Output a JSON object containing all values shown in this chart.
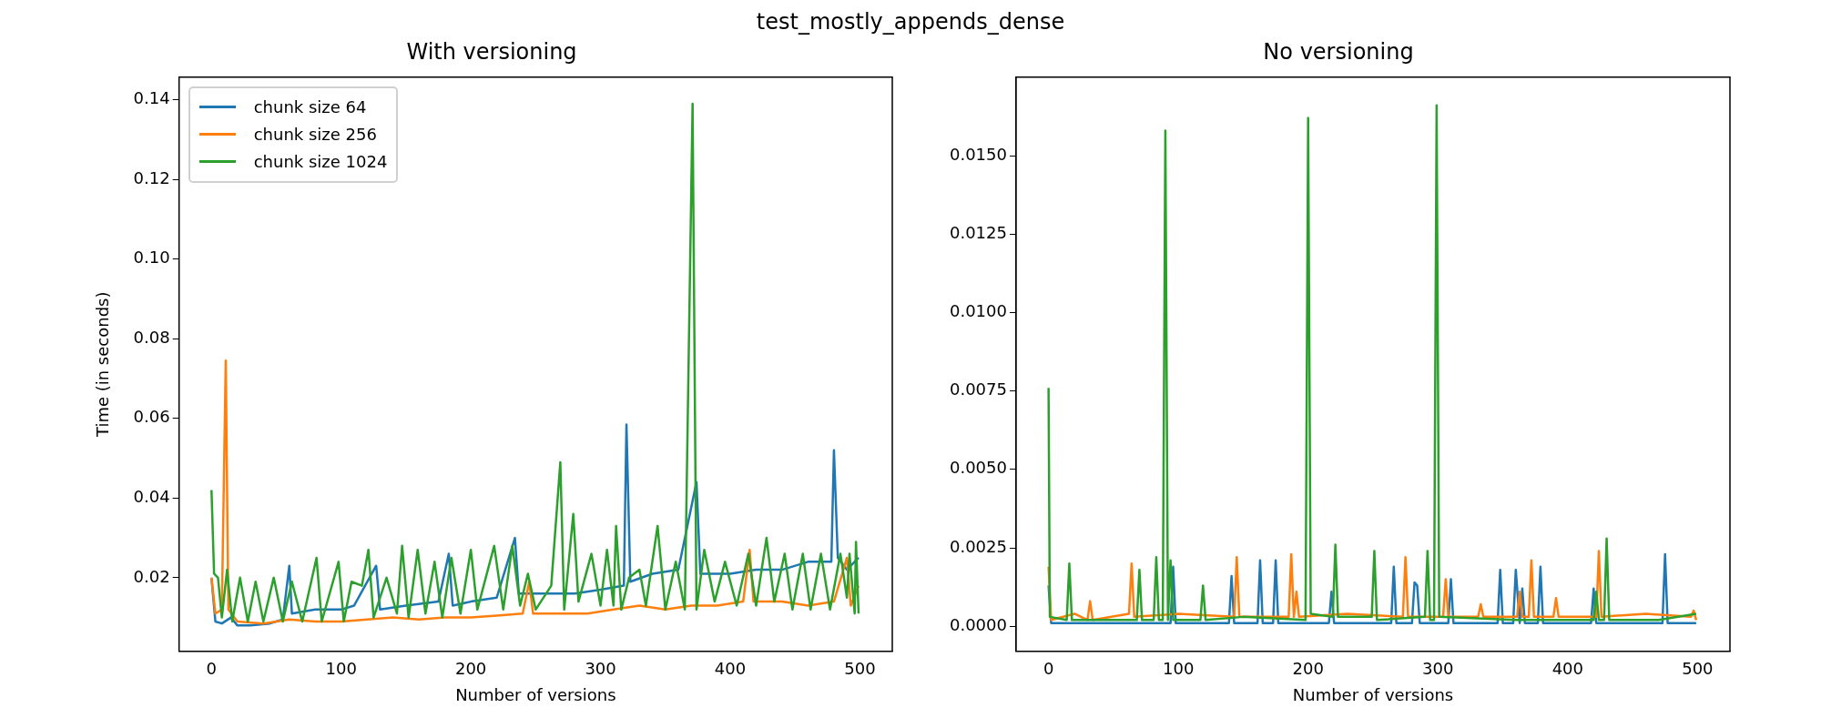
{
  "chart_data": [
    {
      "type": "line",
      "title": "test_mostly_appends_dense",
      "subtitle": "With versioning",
      "xlabel": "Number of versions",
      "ylabel": "Time (in seconds)",
      "xlim": [
        -25,
        525
      ],
      "ylim": [
        0.0015,
        0.1457
      ],
      "xticks": [
        0,
        100,
        200,
        300,
        400,
        500
      ],
      "yticks": [
        0.02,
        0.04,
        0.06,
        0.08,
        {
          "value": 0.1,
          "label": "0.10"
        },
        0.12,
        0.14
      ],
      "legend": "top left",
      "marker": "none",
      "line_style": "solid",
      "series": [
        {
          "name": "chunk size 64",
          "color": "#1f77b4",
          "x": [
            0,
            3,
            8,
            15,
            20,
            30,
            45,
            55,
            60,
            62,
            80,
            100,
            110,
            127,
            130,
            150,
            175,
            183,
            186,
            200,
            220,
            234,
            237,
            260,
            280,
            300,
            318,
            320,
            323,
            340,
            360,
            374,
            377,
            400,
            420,
            440,
            460,
            478,
            480,
            483,
            490,
            499
          ],
          "values": [
            0.02,
            0.009,
            0.0085,
            0.01,
            0.008,
            0.008,
            0.0085,
            0.0095,
            0.023,
            0.011,
            0.012,
            0.012,
            0.013,
            0.023,
            0.012,
            0.013,
            0.014,
            0.026,
            0.013,
            0.014,
            0.015,
            0.03,
            0.016,
            0.016,
            0.016,
            0.017,
            0.018,
            0.0585,
            0.019,
            0.021,
            0.022,
            0.044,
            0.021,
            0.021,
            0.022,
            0.022,
            0.024,
            0.024,
            0.052,
            0.025,
            0.022,
            0.025
          ]
        },
        {
          "name": "chunk size 256",
          "color": "#ff7f0e",
          "x": [
            0,
            3,
            8,
            11,
            13,
            20,
            40,
            60,
            80,
            100,
            120,
            140,
            160,
            180,
            200,
            220,
            240,
            245,
            248,
            270,
            290,
            310,
            330,
            350,
            370,
            390,
            410,
            415,
            418,
            440,
            460,
            480,
            490,
            493,
            499
          ],
          "values": [
            0.02,
            0.011,
            0.012,
            0.0745,
            0.012,
            0.009,
            0.0085,
            0.0095,
            0.009,
            0.009,
            0.0095,
            0.01,
            0.0095,
            0.01,
            0.01,
            0.0105,
            0.011,
            0.019,
            0.011,
            0.011,
            0.011,
            0.012,
            0.013,
            0.012,
            0.013,
            0.013,
            0.014,
            0.027,
            0.014,
            0.014,
            0.013,
            0.014,
            0.025,
            0.013,
            0.018
          ]
        },
        {
          "name": "chunk size 1024",
          "color": "#2ca02c",
          "x": [
            0,
            2,
            5,
            8,
            12,
            16,
            22,
            28,
            34,
            40,
            48,
            55,
            62,
            70,
            81,
            85,
            98,
            102,
            108,
            116,
            121,
            125,
            135,
            143,
            147,
            152,
            159,
            165,
            172,
            178,
            185,
            192,
            200,
            205,
            218,
            225,
            232,
            238,
            244,
            250,
            262,
            269,
            272,
            279,
            283,
            293,
            300,
            305,
            310,
            312,
            316,
            322,
            330,
            335,
            344,
            350,
            358,
            365,
            371,
            374,
            380,
            388,
            396,
            405,
            414,
            420,
            428,
            434,
            442,
            448,
            456,
            462,
            470,
            477,
            485,
            490,
            492,
            496,
            497,
            499
          ],
          "values": [
            0.042,
            0.021,
            0.02,
            0.01,
            0.022,
            0.009,
            0.02,
            0.009,
            0.019,
            0.009,
            0.02,
            0.009,
            0.019,
            0.009,
            0.025,
            0.009,
            0.024,
            0.009,
            0.019,
            0.018,
            0.027,
            0.01,
            0.02,
            0.011,
            0.028,
            0.01,
            0.027,
            0.011,
            0.024,
            0.01,
            0.025,
            0.011,
            0.027,
            0.012,
            0.028,
            0.012,
            0.028,
            0.013,
            0.021,
            0.012,
            0.018,
            0.049,
            0.012,
            0.036,
            0.014,
            0.026,
            0.013,
            0.027,
            0.013,
            0.033,
            0.012,
            0.02,
            0.022,
            0.013,
            0.033,
            0.012,
            0.024,
            0.012,
            0.139,
            0.012,
            0.027,
            0.014,
            0.024,
            0.013,
            0.026,
            0.013,
            0.03,
            0.014,
            0.026,
            0.012,
            0.026,
            0.012,
            0.026,
            0.012,
            0.026,
            0.015,
            0.026,
            0.011,
            0.029,
            0.011
          ]
        }
      ]
    },
    {
      "type": "line",
      "title": "No versioning",
      "xlabel": "Number of versions",
      "xlim": [
        -25,
        525
      ],
      "ylim": [
        -0.0008,
        0.0175
      ],
      "xticks": [
        0,
        100,
        200,
        300,
        400,
        500
      ],
      "yticks": [
        {
          "value": 0,
          "label": "0.0000"
        },
        {
          "value": 0.0025,
          "label": "0.0025"
        },
        {
          "value": 0.005,
          "label": "0.0050"
        },
        {
          "value": 0.0075,
          "label": "0.0075"
        },
        {
          "value": 0.01,
          "label": "0.0100"
        },
        {
          "value": 0.0125,
          "label": "0.0125"
        },
        {
          "value": 0.015,
          "label": "0.0150"
        }
      ],
      "marker": "none",
      "line_style": "solid",
      "series": [
        {
          "color": "#1f77b4",
          "x": [
            0,
            2,
            40,
            94,
            96,
            98,
            139,
            141,
            143,
            161,
            163,
            165,
            173,
            175,
            177,
            216,
            218,
            220,
            264,
            266,
            268,
            280,
            282,
            284,
            286,
            308,
            310,
            312,
            346,
            348,
            350,
            358,
            360,
            363,
            365,
            367,
            377,
            379,
            381,
            418,
            420,
            422,
            473,
            475,
            477,
            499
          ],
          "values": [
            0.0013,
            0.0001,
            0.0001,
            0.0001,
            0.0019,
            0.0001,
            0.0001,
            0.0016,
            0.0001,
            0.0001,
            0.0021,
            0.0001,
            0.0001,
            0.0021,
            0.0001,
            0.0001,
            0.0011,
            0.0001,
            0.0001,
            0.0019,
            0.0001,
            0.0001,
            0.0014,
            0.0013,
            0.0001,
            0.0001,
            0.0015,
            0.0001,
            0.0001,
            0.0018,
            0.0001,
            0.0001,
            0.0018,
            0.0001,
            0.0012,
            0.0001,
            0.0001,
            0.0019,
            0.0001,
            0.0001,
            0.0012,
            0.0001,
            0.0001,
            0.0023,
            0.0001,
            0.0001
          ]
        },
        {
          "color": "#ff7f0e",
          "x": [
            0,
            2,
            20,
            30,
            32,
            34,
            62,
            64,
            66,
            100,
            143,
            145,
            147,
            185,
            187,
            189,
            191,
            193,
            230,
            273,
            275,
            277,
            304,
            306,
            308,
            331,
            333,
            335,
            361,
            363,
            365,
            370,
            372,
            374,
            389,
            391,
            393,
            422,
            424,
            426,
            460,
            495,
            497,
            499
          ],
          "values": [
            0.0019,
            0.0002,
            0.0004,
            0.0002,
            0.0008,
            0.0002,
            0.0004,
            0.002,
            0.0003,
            0.0004,
            0.0003,
            0.0022,
            0.0003,
            0.0003,
            0.0023,
            0.0003,
            0.0011,
            0.0003,
            0.0004,
            0.0003,
            0.0022,
            0.0003,
            0.0003,
            0.0015,
            0.0003,
            0.0003,
            0.0007,
            0.0003,
            0.0003,
            0.0011,
            0.0003,
            0.0003,
            0.0021,
            0.0003,
            0.0003,
            0.0009,
            0.0003,
            0.0003,
            0.0024,
            0.0003,
            0.0004,
            0.0003,
            0.0005,
            0.0002
          ]
        },
        {
          "color": "#2ca02c",
          "x": [
            0,
            1,
            14,
            16,
            18,
            68,
            70,
            72,
            81,
            83,
            85,
            88,
            90,
            92,
            94,
            96,
            117,
            119,
            121,
            150,
            198,
            200,
            202,
            219,
            221,
            223,
            249,
            251,
            253,
            290,
            292,
            294,
            297,
            299,
            301,
            360,
            420,
            422,
            424,
            428,
            430,
            432,
            470,
            499
          ],
          "values": [
            0.0076,
            0.0003,
            0.0002,
            0.002,
            0.0002,
            0.0002,
            0.0018,
            0.0002,
            0.0002,
            0.0022,
            0.0002,
            0.0002,
            0.0158,
            0.0002,
            0.0021,
            0.0002,
            0.0002,
            0.0013,
            0.0002,
            0.0003,
            0.0002,
            0.0162,
            0.0004,
            0.0003,
            0.0026,
            0.0003,
            0.0003,
            0.0024,
            0.0002,
            0.0003,
            0.0024,
            0.0002,
            0.0002,
            0.0166,
            0.0003,
            0.0002,
            0.0002,
            0.0011,
            0.0002,
            0.0002,
            0.0028,
            0.0002,
            0.0002,
            0.0004
          ]
        }
      ]
    }
  ]
}
